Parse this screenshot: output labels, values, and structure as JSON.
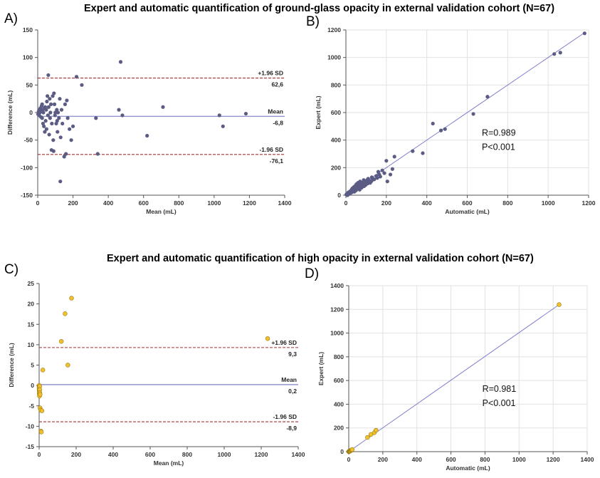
{
  "titles": {
    "top": "Expert and automatic quantification of ground-glass opacity in external validation cohort (N=67)",
    "bottom": "Expert and automatic quantification of high opacity in external validation cohort (N=67)"
  },
  "colors": {
    "ggo_points": "#5b5c84",
    "high_points": "#f2c12e",
    "mean_line": "#6f6fbf",
    "sd_line": "#a53030",
    "regression_line": "#7d7dcc"
  },
  "chart_data": [
    {
      "panel": "A)",
      "type": "scatter",
      "subtype": "bland-altman",
      "xlabel": "Mean (mL)",
      "ylabel": "Difference (mL)",
      "xlim": [
        0,
        1400
      ],
      "ylim": [
        -150,
        150
      ],
      "xticks": [
        0,
        200,
        400,
        600,
        800,
        1000,
        1200,
        1400
      ],
      "yticks": [
        -150,
        -100,
        -50,
        0,
        50,
        100,
        150
      ],
      "grid": false,
      "point_color": "ggo_points",
      "reference_lines": [
        {
          "label_top": "+1.96 SD",
          "label_bottom": "62,6",
          "value": 62.6,
          "style": "dashed",
          "color": "sd_line"
        },
        {
          "label_top": "Mean",
          "label_bottom": "-6,8",
          "value": -6.8,
          "style": "solid",
          "color": "mean_line"
        },
        {
          "label_top": "-1.96 SD",
          "label_bottom": "-76,1",
          "value": -76.1,
          "style": "dashed",
          "color": "sd_line"
        }
      ],
      "points": [
        [
          2,
          -3
        ],
        [
          5,
          2
        ],
        [
          8,
          -5
        ],
        [
          10,
          5
        ],
        [
          12,
          0
        ],
        [
          15,
          8
        ],
        [
          18,
          -8
        ],
        [
          20,
          3
        ],
        [
          22,
          12
        ],
        [
          25,
          15
        ],
        [
          25,
          -10
        ],
        [
          28,
          5
        ],
        [
          30,
          -20
        ],
        [
          32,
          0
        ],
        [
          35,
          -25
        ],
        [
          38,
          8
        ],
        [
          40,
          -35
        ],
        [
          42,
          10
        ],
        [
          45,
          -15
        ],
        [
          48,
          5
        ],
        [
          50,
          -30
        ],
        [
          52,
          20
        ],
        [
          55,
          30
        ],
        [
          58,
          -5
        ],
        [
          60,
          68
        ],
        [
          62,
          10
        ],
        [
          65,
          -40
        ],
        [
          68,
          25
        ],
        [
          70,
          -10
        ],
        [
          72,
          0
        ],
        [
          75,
          15
        ],
        [
          78,
          -68
        ],
        [
          80,
          -20
        ],
        [
          85,
          30
        ],
        [
          88,
          -50
        ],
        [
          90,
          -70
        ],
        [
          92,
          35
        ],
        [
          95,
          15
        ],
        [
          98,
          -5
        ],
        [
          100,
          0
        ],
        [
          105,
          -20
        ],
        [
          108,
          5
        ],
        [
          110,
          -15
        ],
        [
          112,
          -35
        ],
        [
          115,
          0
        ],
        [
          120,
          -10
        ],
        [
          125,
          25
        ],
        [
          128,
          -125
        ],
        [
          130,
          -45
        ],
        [
          135,
          5
        ],
        [
          140,
          -20
        ],
        [
          150,
          -80
        ],
        [
          155,
          15
        ],
        [
          160,
          -75
        ],
        [
          165,
          22
        ],
        [
          170,
          -10
        ],
        [
          180,
          -30
        ],
        [
          190,
          -50
        ],
        [
          200,
          -25
        ],
        [
          220,
          65
        ],
        [
          250,
          50
        ],
        [
          330,
          -10
        ],
        [
          340,
          -75
        ],
        [
          460,
          5
        ],
        [
          470,
          92
        ],
        [
          480,
          -5
        ],
        [
          620,
          -42
        ],
        [
          710,
          10
        ],
        [
          1030,
          -5
        ],
        [
          1050,
          -25
        ],
        [
          1180,
          -2
        ]
      ]
    },
    {
      "panel": "B)",
      "type": "scatter",
      "subtype": "correlation",
      "xlabel": "Automatic (mL)",
      "ylabel": "Expert (mL)",
      "xlim": [
        0,
        1200
      ],
      "ylim": [
        0,
        1200
      ],
      "xticks": [
        0,
        200,
        400,
        600,
        800,
        1000,
        1200
      ],
      "yticks": [
        0,
        200,
        400,
        600,
        800,
        1000,
        1200
      ],
      "grid": true,
      "point_color": "ggo_points",
      "regression_line": {
        "from": [
          0,
          0
        ],
        "to": [
          1180,
          1180
        ]
      },
      "stats": [
        "R=0.989",
        "P<0.001"
      ],
      "points": [
        [
          2,
          5
        ],
        [
          5,
          10
        ],
        [
          8,
          0
        ],
        [
          10,
          15
        ],
        [
          12,
          20
        ],
        [
          15,
          8
        ],
        [
          18,
          25
        ],
        [
          20,
          12
        ],
        [
          22,
          30
        ],
        [
          25,
          18
        ],
        [
          28,
          40
        ],
        [
          30,
          22
        ],
        [
          32,
          50
        ],
        [
          35,
          30
        ],
        [
          38,
          45
        ],
        [
          40,
          60
        ],
        [
          42,
          25
        ],
        [
          45,
          55
        ],
        [
          48,
          70
        ],
        [
          50,
          35
        ],
        [
          52,
          80
        ],
        [
          55,
          45
        ],
        [
          58,
          65
        ],
        [
          60,
          90
        ],
        [
          62,
          50
        ],
        [
          65,
          75
        ],
        [
          68,
          40
        ],
        [
          70,
          100
        ],
        [
          72,
          60
        ],
        [
          75,
          85
        ],
        [
          78,
          55
        ],
        [
          80,
          70
        ],
        [
          85,
          95
        ],
        [
          88,
          110
        ],
        [
          90,
          65
        ],
        [
          92,
          80
        ],
        [
          95,
          100
        ],
        [
          98,
          75
        ],
        [
          100,
          90
        ],
        [
          105,
          110
        ],
        [
          108,
          85
        ],
        [
          110,
          120
        ],
        [
          112,
          95
        ],
        [
          115,
          105
        ],
        [
          120,
          90
        ],
        [
          125,
          100
        ],
        [
          128,
          130
        ],
        [
          130,
          110
        ],
        [
          135,
          120
        ],
        [
          140,
          115
        ],
        [
          150,
          140
        ],
        [
          155,
          125
        ],
        [
          160,
          170
        ],
        [
          165,
          150
        ],
        [
          170,
          135
        ],
        [
          180,
          180
        ],
        [
          190,
          160
        ],
        [
          200,
          250
        ],
        [
          205,
          100
        ],
        [
          220,
          150
        ],
        [
          230,
          190
        ],
        [
          240,
          280
        ],
        [
          330,
          320
        ],
        [
          380,
          305
        ],
        [
          430,
          520
        ],
        [
          470,
          470
        ],
        [
          490,
          480
        ],
        [
          630,
          590
        ],
        [
          700,
          715
        ],
        [
          1030,
          1025
        ],
        [
          1060,
          1035
        ],
        [
          1180,
          1175
        ]
      ]
    },
    {
      "panel": "C)",
      "type": "scatter",
      "subtype": "bland-altman",
      "xlabel": "Mean (mL)",
      "ylabel": "Difference (mL)",
      "xlim": [
        0,
        1400
      ],
      "ylim": [
        -15,
        25
      ],
      "xticks": [
        0,
        200,
        400,
        600,
        800,
        1000,
        1200,
        1400
      ],
      "yticks": [
        -15,
        -10,
        -5,
        0,
        5,
        10,
        15,
        20,
        25
      ],
      "grid": false,
      "point_color": "high_points",
      "reference_lines": [
        {
          "label_top": "+1.96 SD",
          "label_bottom": "9,3",
          "value": 9.3,
          "style": "dashed",
          "color": "sd_line"
        },
        {
          "label_top": "Mean",
          "label_bottom": "0,2",
          "value": 0.2,
          "style": "solid",
          "color": "mean_line"
        },
        {
          "label_top": "-1.96 SD",
          "label_bottom": "-8,9",
          "value": -8.9,
          "style": "dashed",
          "color": "sd_line"
        }
      ],
      "points": [
        [
          0,
          0
        ],
        [
          0,
          -0.3
        ],
        [
          0,
          -0.6
        ],
        [
          0,
          -1
        ],
        [
          1,
          -1.3
        ],
        [
          1,
          -1.6
        ],
        [
          1,
          -2
        ],
        [
          2,
          -2.3
        ],
        [
          2,
          -2.6
        ],
        [
          3,
          -0.2
        ],
        [
          3,
          -1
        ],
        [
          4,
          -1.8
        ],
        [
          5,
          -2.2
        ],
        [
          5,
          -5.5
        ],
        [
          8,
          -6
        ],
        [
          10,
          -11.2
        ],
        [
          12,
          -11.4
        ],
        [
          15,
          -6.2
        ],
        [
          20,
          3.8
        ],
        [
          120,
          10.8
        ],
        [
          140,
          17.6
        ],
        [
          155,
          5
        ],
        [
          175,
          21.4
        ],
        [
          1235,
          11.5
        ]
      ]
    },
    {
      "panel": "D)",
      "type": "scatter",
      "subtype": "correlation",
      "xlabel": "Automatic (mL)",
      "ylabel": "Expert (mL)",
      "xlim": [
        0,
        1400
      ],
      "ylim": [
        0,
        1400
      ],
      "xticks": [
        0,
        200,
        400,
        600,
        800,
        1000,
        1200,
        1400
      ],
      "yticks": [
        0,
        200,
        400,
        600,
        800,
        1000,
        1200,
        1400
      ],
      "grid": true,
      "point_color": "high_points",
      "regression_line": {
        "from": [
          0,
          0
        ],
        "to": [
          1235,
          1240
        ]
      },
      "stats": [
        "R=0.981",
        "P<0.001"
      ],
      "points": [
        [
          0,
          0
        ],
        [
          1,
          2
        ],
        [
          2,
          1
        ],
        [
          3,
          4
        ],
        [
          5,
          3
        ],
        [
          6,
          8
        ],
        [
          8,
          5
        ],
        [
          10,
          10
        ],
        [
          12,
          8
        ],
        [
          15,
          12
        ],
        [
          18,
          14
        ],
        [
          20,
          18
        ],
        [
          110,
          120
        ],
        [
          130,
          145
        ],
        [
          150,
          160
        ],
        [
          160,
          180
        ],
        [
          1235,
          1240
        ]
      ]
    }
  ]
}
